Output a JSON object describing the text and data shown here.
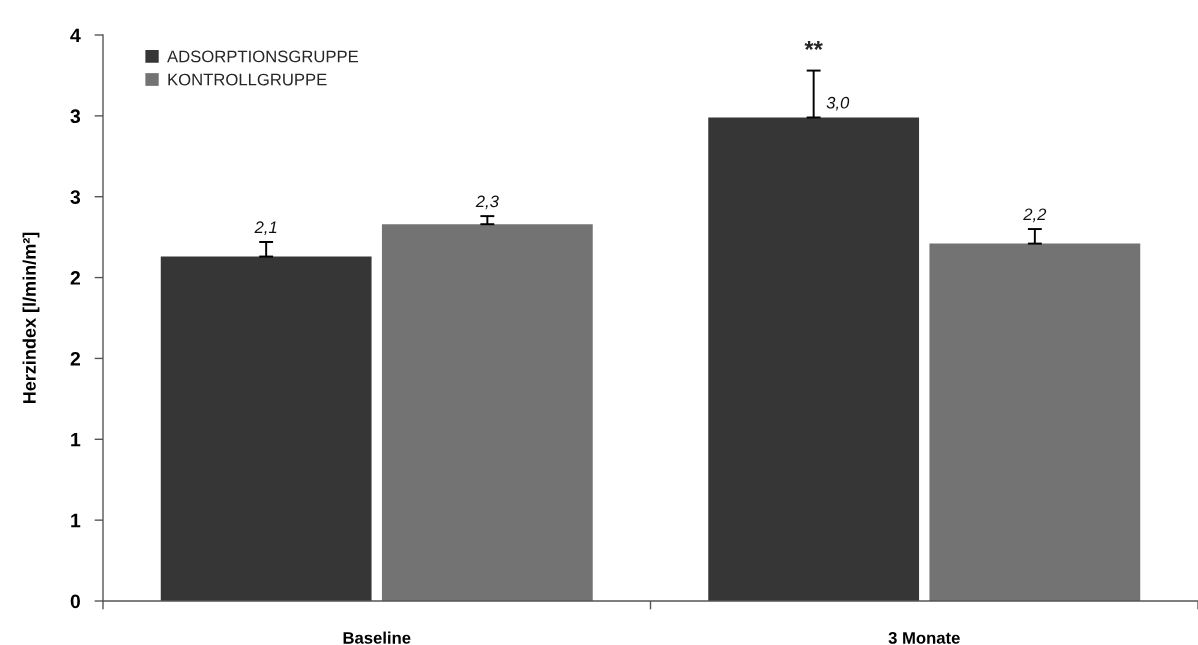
{
  "chart_data": {
    "type": "bar",
    "ylabel": "Herzindex [l/min/m²]",
    "categories": [
      "Baseline",
      "3 Monate"
    ],
    "series": [
      {
        "name": "ADSORPTIONSGRUPPE",
        "color": "#363636",
        "values": [
          2.13,
          2.99
        ],
        "errors": [
          [
            2.13,
            2.22
          ],
          [
            2.99,
            3.28
          ]
        ],
        "value_labels": [
          "2,1",
          "3,0"
        ]
      },
      {
        "name": "KONTROLLGRUPPE",
        "color": "#737373",
        "values": [
          2.33,
          2.21
        ],
        "errors": [
          [
            2.33,
            2.38
          ],
          [
            2.21,
            2.3
          ]
        ],
        "value_labels": [
          "2,3",
          "2,2"
        ]
      }
    ],
    "ylim": [
      0,
      3.5
    ],
    "yticks": [
      0,
      {
        "value": 0.5,
        "label": "1"
      },
      1,
      {
        "value": 1.5,
        "label": "2"
      },
      2,
      {
        "value": 2.5,
        "label": "3"
      },
      3,
      {
        "value": 3.5,
        "label": "4"
      }
    ],
    "annotations": [
      "**"
    ],
    "grid": false,
    "legend": "top left"
  }
}
